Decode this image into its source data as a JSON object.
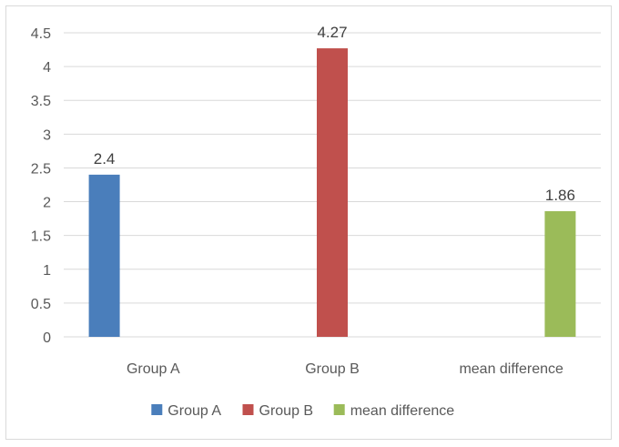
{
  "chart_data": {
    "type": "bar",
    "categories": [
      "Group A",
      "Group B",
      "mean difference"
    ],
    "series": [
      {
        "name": "Group A",
        "color": "#4a7ebb",
        "values": [
          2.4,
          null,
          null
        ]
      },
      {
        "name": "Group B",
        "color": "#c0504d",
        "values": [
          null,
          4.27,
          null
        ]
      },
      {
        "name": "mean difference",
        "color": "#9bbb59",
        "values": [
          null,
          null,
          1.86
        ]
      }
    ],
    "data_labels": [
      "2.4",
      "4.27",
      "1.86"
    ],
    "yticks": [
      "0",
      "0.5",
      "1",
      "1.5",
      "2",
      "2.5",
      "3",
      "3.5",
      "4",
      "4.5"
    ],
    "ylim": [
      0,
      4.5
    ],
    "grid": true,
    "legend": "bottom"
  }
}
